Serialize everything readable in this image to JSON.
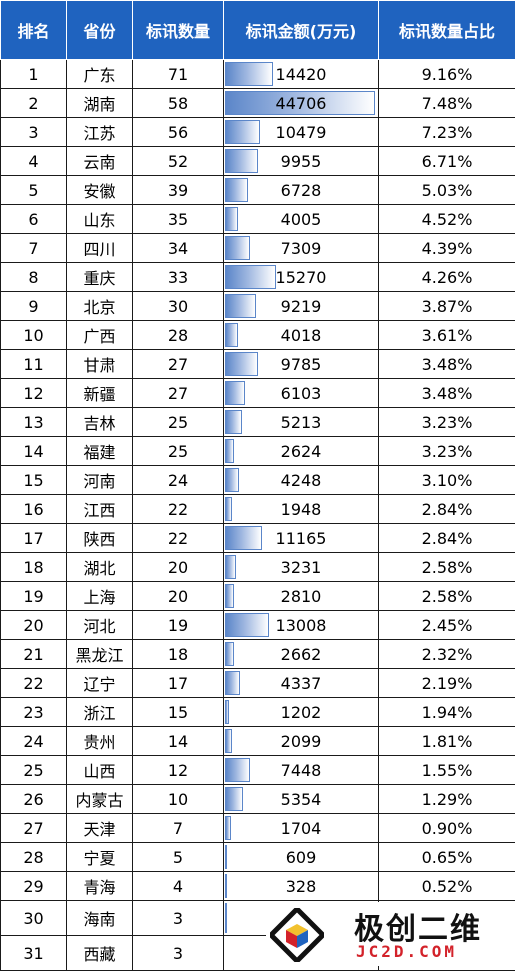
{
  "headers": [
    "排名",
    "省份",
    "标讯数量",
    "标讯金额(万元)",
    "标讯数量占比"
  ],
  "rows": [
    {
      "rank": "1",
      "province": "广东",
      "count": "71",
      "amount": "14420",
      "share": "9.16%"
    },
    {
      "rank": "2",
      "province": "湖南",
      "count": "58",
      "amount": "44706",
      "share": "7.48%"
    },
    {
      "rank": "3",
      "province": "江苏",
      "count": "56",
      "amount": "10479",
      "share": "7.23%"
    },
    {
      "rank": "4",
      "province": "云南",
      "count": "52",
      "amount": "9955",
      "share": "6.71%"
    },
    {
      "rank": "5",
      "province": "安徽",
      "count": "39",
      "amount": "6728",
      "share": "5.03%"
    },
    {
      "rank": "6",
      "province": "山东",
      "count": "35",
      "amount": "4005",
      "share": "4.52%"
    },
    {
      "rank": "7",
      "province": "四川",
      "count": "34",
      "amount": "7309",
      "share": "4.39%"
    },
    {
      "rank": "8",
      "province": "重庆",
      "count": "33",
      "amount": "15270",
      "share": "4.26%"
    },
    {
      "rank": "9",
      "province": "北京",
      "count": "30",
      "amount": "9219",
      "share": "3.87%"
    },
    {
      "rank": "10",
      "province": "广西",
      "count": "28",
      "amount": "4018",
      "share": "3.61%"
    },
    {
      "rank": "11",
      "province": "甘肃",
      "count": "27",
      "amount": "9785",
      "share": "3.48%"
    },
    {
      "rank": "12",
      "province": "新疆",
      "count": "27",
      "amount": "6103",
      "share": "3.48%"
    },
    {
      "rank": "13",
      "province": "吉林",
      "count": "25",
      "amount": "5213",
      "share": "3.23%"
    },
    {
      "rank": "14",
      "province": "福建",
      "count": "25",
      "amount": "2624",
      "share": "3.23%"
    },
    {
      "rank": "15",
      "province": "河南",
      "count": "24",
      "amount": "4248",
      "share": "3.10%"
    },
    {
      "rank": "16",
      "province": "江西",
      "count": "22",
      "amount": "1948",
      "share": "2.84%"
    },
    {
      "rank": "17",
      "province": "陕西",
      "count": "22",
      "amount": "11165",
      "share": "2.84%"
    },
    {
      "rank": "18",
      "province": "湖北",
      "count": "20",
      "amount": "3231",
      "share": "2.58%"
    },
    {
      "rank": "19",
      "province": "上海",
      "count": "20",
      "amount": "2810",
      "share": "2.58%"
    },
    {
      "rank": "20",
      "province": "河北",
      "count": "19",
      "amount": "13008",
      "share": "2.45%"
    },
    {
      "rank": "21",
      "province": "黑龙江",
      "count": "18",
      "amount": "2662",
      "share": "2.32%"
    },
    {
      "rank": "22",
      "province": "辽宁",
      "count": "17",
      "amount": "4337",
      "share": "2.19%"
    },
    {
      "rank": "23",
      "province": "浙江",
      "count": "15",
      "amount": "1202",
      "share": "1.94%"
    },
    {
      "rank": "24",
      "province": "贵州",
      "count": "14",
      "amount": "2099",
      "share": "1.81%"
    },
    {
      "rank": "25",
      "province": "山西",
      "count": "12",
      "amount": "7448",
      "share": "1.55%"
    },
    {
      "rank": "26",
      "province": "内蒙古",
      "count": "10",
      "amount": "5354",
      "share": "1.29%"
    },
    {
      "rank": "27",
      "province": "天津",
      "count": "7",
      "amount": "1704",
      "share": "0.90%"
    },
    {
      "rank": "28",
      "province": "宁夏",
      "count": "5",
      "amount": "609",
      "share": "0.65%"
    },
    {
      "rank": "29",
      "province": "青海",
      "count": "4",
      "amount": "328",
      "share": "0.52%"
    },
    {
      "rank": "30",
      "province": "海南",
      "count": "3",
      "amount": "",
      "share": ""
    },
    {
      "rank": "31",
      "province": "西藏",
      "count": "3",
      "amount": "",
      "share": ""
    }
  ],
  "amount_bar_max": 44706,
  "colors": {
    "header_bg": "#1f63bf",
    "header_text": "#ffffff",
    "bar": "#5b86c9",
    "logo_red": "#d3222a"
  },
  "watermark": {
    "title": "极创二维",
    "subtitle": "JC2D.COM"
  }
}
